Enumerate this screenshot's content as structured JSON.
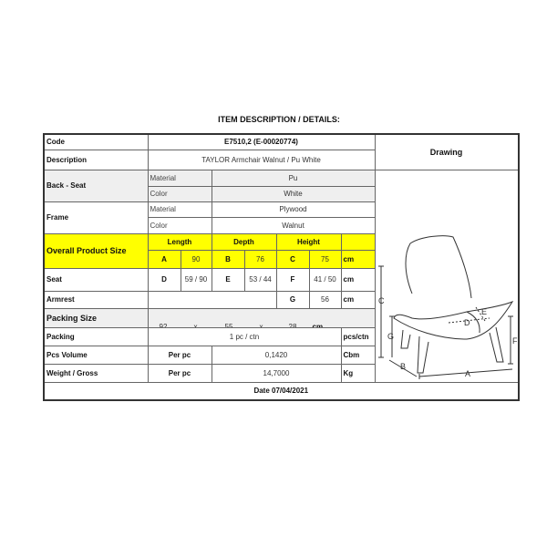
{
  "title": "ITEM DESCRIPTION / DETAILS:",
  "code": {
    "label": "Code",
    "value": "E7510,2 (E-00020774)"
  },
  "description": {
    "label": "Description",
    "value": "TAYLOR Armchair Walnut / Pu White"
  },
  "drawing": {
    "label": "Drawing",
    "dimension_labels": [
      "A",
      "B",
      "C",
      "D",
      "E",
      "F",
      "G"
    ]
  },
  "back_seat": {
    "label": "Back - Seat",
    "material_label": "Material",
    "material": "Pu",
    "color_label": "Color",
    "color": "White"
  },
  "frame": {
    "label": "Frame",
    "material_label": "Material",
    "material": "Plywood",
    "color_label": "Color",
    "color": "Walnut"
  },
  "overall": {
    "label": "Overall Product Size",
    "length": "Length",
    "depth": "Depth",
    "height": "Height",
    "a": "A",
    "a_val": "90",
    "b": "B",
    "b_val": "76",
    "c": "C",
    "c_val": "75",
    "unit": "cm"
  },
  "seat": {
    "label": "Seat",
    "d": "D",
    "d_val": "59 / 90",
    "e": "E",
    "e_val": "53 / 44",
    "f": "F",
    "f_val": "41 / 50",
    "unit": "cm"
  },
  "armrest": {
    "label": "Armrest",
    "g": "G",
    "g_val": "56",
    "unit": "cm"
  },
  "packing_size": {
    "label": "Packing Size",
    "l": "92",
    "x1": "x",
    "w": "55",
    "x2": "x",
    "h": "28",
    "unit": "cm"
  },
  "packing": {
    "label": "Packing",
    "value": "1 pc / ctn",
    "unit": "pcs/ctn"
  },
  "volume": {
    "label": "Pcs Volume",
    "per": "Per pc",
    "value": "0,1420",
    "unit": "Cbm"
  },
  "weight": {
    "label": "Weight / Gross",
    "per": "Per pc",
    "value": "14,7000",
    "unit": "Kg"
  },
  "date": "Date 07/04/2021",
  "colors": {
    "highlight": "#ffff00",
    "shade": "#efefef"
  }
}
